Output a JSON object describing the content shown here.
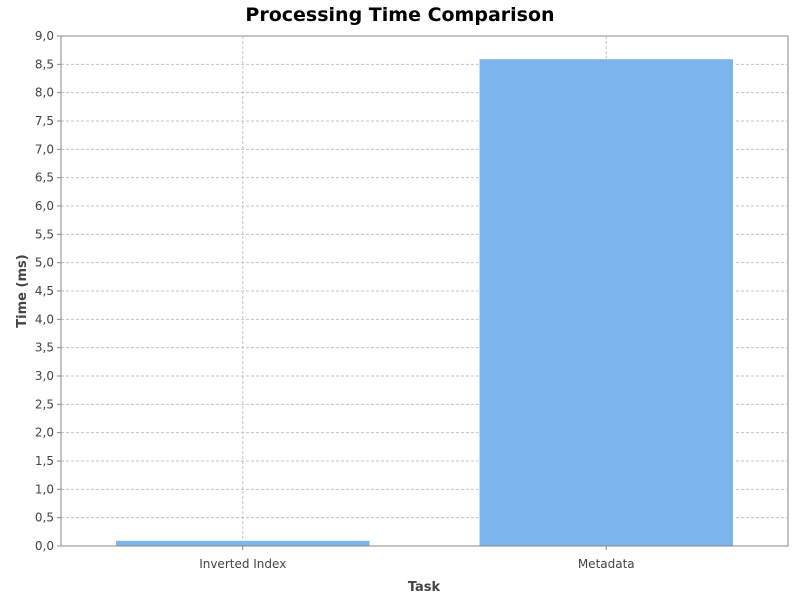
{
  "chart_data": {
    "type": "bar",
    "title": "Processing Time Comparison",
    "xlabel": "Task",
    "ylabel": "Time (ms)",
    "categories": [
      "Inverted Index",
      "Metadata"
    ],
    "values": [
      0.1,
      8.6
    ],
    "ylim": [
      0,
      9
    ],
    "yticks": [
      "0,0",
      "0,5",
      "1,0",
      "1,5",
      "2,0",
      "2,5",
      "3,0",
      "3,5",
      "4,0",
      "4,5",
      "5,0",
      "5,5",
      "6,0",
      "6,5",
      "7,0",
      "7,5",
      "8,0",
      "8,5",
      "9,0"
    ],
    "grid": true,
    "legend": "none",
    "bar_color": "#7cb5ec",
    "bar_edge_color": "#ffffff"
  }
}
